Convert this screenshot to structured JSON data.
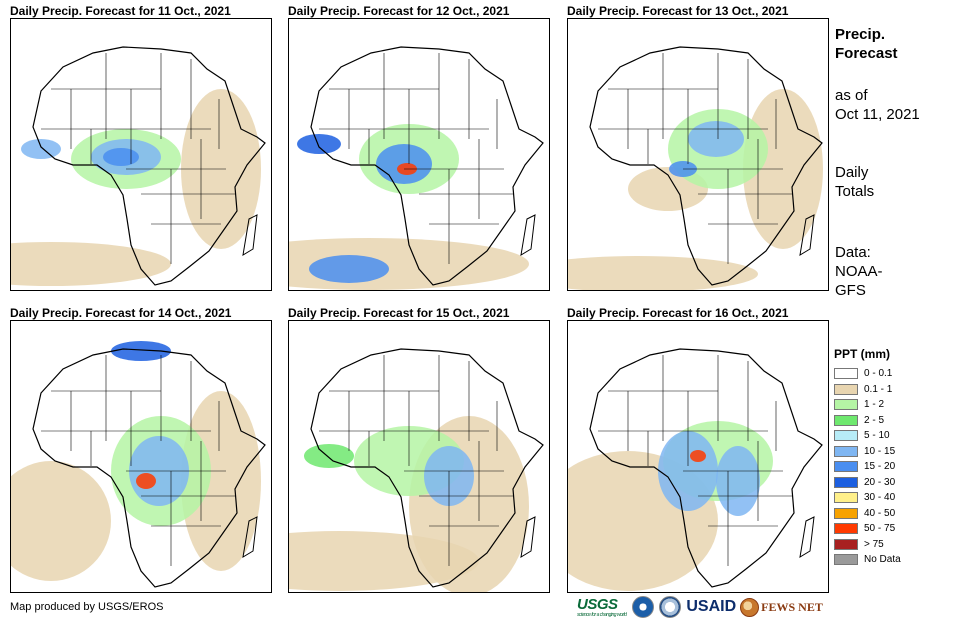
{
  "panels": [
    {
      "title": "Daily Precip. Forecast for 11 Oct., 2021"
    },
    {
      "title": "Daily Precip. Forecast for 12 Oct., 2021"
    },
    {
      "title": "Daily Precip. Forecast for 13 Oct., 2021"
    },
    {
      "title": "Daily Precip. Forecast for 14 Oct., 2021"
    },
    {
      "title": "Daily Precip. Forecast for 15 Oct., 2021"
    },
    {
      "title": "Daily Precip. Forecast for 16 Oct., 2021"
    }
  ],
  "sidebar": {
    "heading_line1": "Precip.",
    "heading_line2": "Forecast",
    "asof_line1": "as of",
    "asof_line2": "Oct 11, 2021",
    "daily_line1": "Daily",
    "daily_line2": "Totals",
    "data_line1": "Data:",
    "data_line2": "NOAA-",
    "data_line3": "GFS"
  },
  "legend": {
    "title": "PPT (mm)",
    "items": [
      {
        "label": "0 - 0.1",
        "color": "#ffffff"
      },
      {
        "label": "0.1 - 1",
        "color": "#e8d5b0"
      },
      {
        "label": "1 - 2",
        "color": "#b5f5a5"
      },
      {
        "label": "2 - 5",
        "color": "#6ee86e"
      },
      {
        "label": "5 - 10",
        "color": "#b7ecf7"
      },
      {
        "label": "10 - 15",
        "color": "#7fb6f2"
      },
      {
        "label": "15 - 20",
        "color": "#4a8ef0"
      },
      {
        "label": "20 - 30",
        "color": "#1c5fe0"
      },
      {
        "label": "30 - 40",
        "color": "#fff08a"
      },
      {
        "label": "40 - 50",
        "color": "#f7a200"
      },
      {
        "label": "50 - 75",
        "color": "#ff3a00"
      },
      {
        "label": "> 75",
        "color": "#a82020"
      },
      {
        "label": "No Data",
        "color": "#9a9a9a"
      }
    ]
  },
  "footer": {
    "credit": "Map produced by USGS/EROS",
    "logos": {
      "usgs": "USGS",
      "usgs_tagline": "science for a changing world",
      "usaid": "USAID",
      "fews": "FEWS NET"
    }
  }
}
